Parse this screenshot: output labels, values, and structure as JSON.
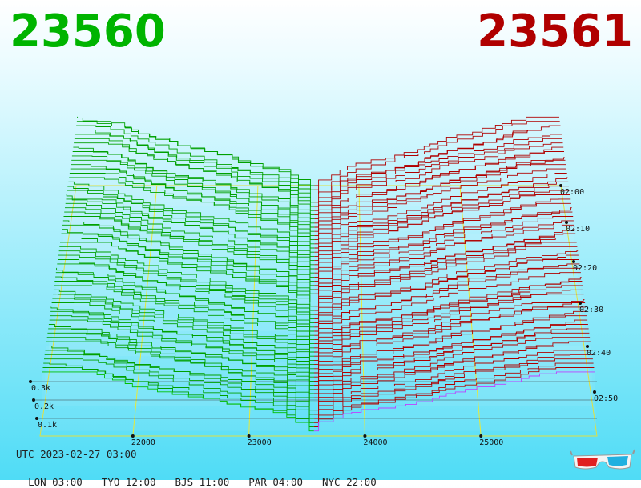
{
  "header": {
    "bid_price": "23560",
    "ask_price": "23561",
    "bid_color": "#00b400",
    "ask_color": "#b00000"
  },
  "footer": {
    "utc": "UTC 2023-02-27 03:00",
    "zones": [
      "LON 03:00",
      "TYO 12:00",
      "BJS 11:00",
      "PAR 04:00",
      "NYC 22:00"
    ]
  },
  "icons": {
    "glasses": "3d-glasses-icon"
  },
  "chart_data": {
    "type": "area",
    "x_ticks": [
      22000,
      23000,
      24000,
      25000
    ],
    "x_tick_labels": [
      "22000",
      "23000",
      "24000",
      "25000"
    ],
    "xlim": [
      21200,
      26000
    ],
    "depth_ticks": [
      "0.1k",
      "0.2k",
      "0.3k"
    ],
    "depth_values": [
      100,
      200,
      300
    ],
    "time_ticks": [
      "02:00",
      "02:10",
      "02:20",
      "02:30",
      "02:40",
      "02:50"
    ],
    "mid_price": 23560.5,
    "series": [
      {
        "name": "23560",
        "color": "#00a000"
      },
      {
        "name": "23561",
        "color": "#b00000"
      }
    ],
    "snapshots": 60
  }
}
